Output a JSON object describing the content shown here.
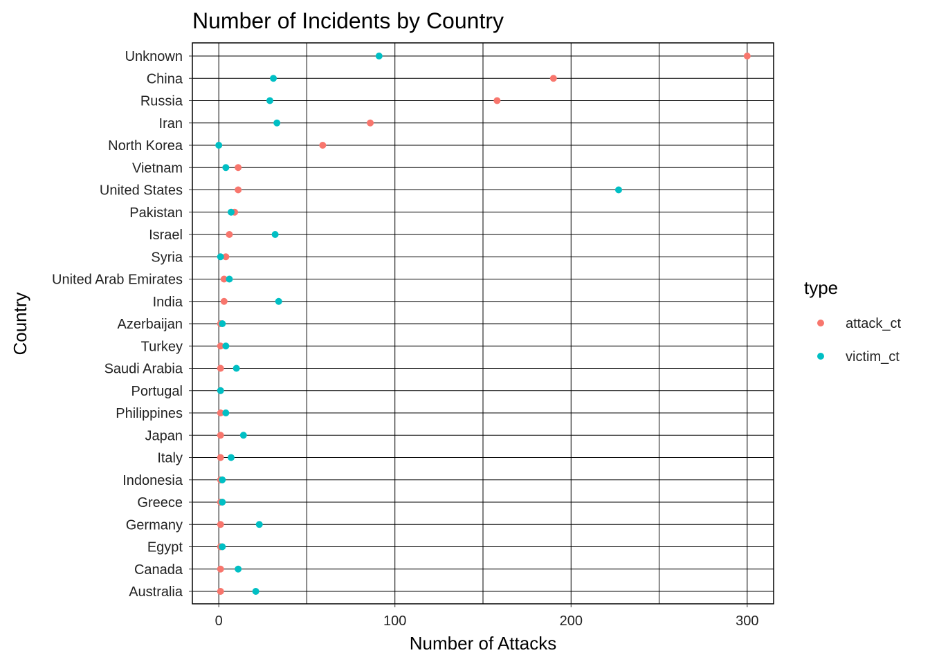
{
  "chart_data": {
    "type": "scatter",
    "title": "Number of Incidents by Country",
    "xlabel": "Number of Attacks",
    "ylabel": "Country",
    "xlim": [
      -15,
      315
    ],
    "x_ticks": [
      0,
      100,
      200,
      300
    ],
    "grid": true,
    "legend_position": "right",
    "legend_title": "type",
    "categories": [
      "Unknown",
      "China",
      "Russia",
      "Iran",
      "North Korea",
      "Vietnam",
      "United States",
      "Pakistan",
      "Israel",
      "Syria",
      "United Arab Emirates",
      "India",
      "Azerbaijan",
      "Turkey",
      "Saudi Arabia",
      "Portugal",
      "Philippines",
      "Japan",
      "Italy",
      "Indonesia",
      "Greece",
      "Germany",
      "Egypt",
      "Canada",
      "Australia"
    ],
    "series": [
      {
        "name": "attack_ct",
        "color": "#F8766D",
        "values": [
          300,
          190,
          158,
          86,
          59,
          11,
          11,
          9,
          6,
          4,
          3,
          3,
          1,
          1,
          1,
          1,
          1,
          1,
          1,
          1,
          1,
          1,
          1,
          1,
          1
        ]
      },
      {
        "name": "victim_ct",
        "color": "#00BFC4",
        "values": [
          91,
          31,
          29,
          33,
          0,
          4,
          227,
          7,
          32,
          1,
          6,
          34,
          2,
          4,
          10,
          1,
          4,
          14,
          7,
          2,
          2,
          23,
          2,
          11,
          21
        ]
      }
    ]
  }
}
